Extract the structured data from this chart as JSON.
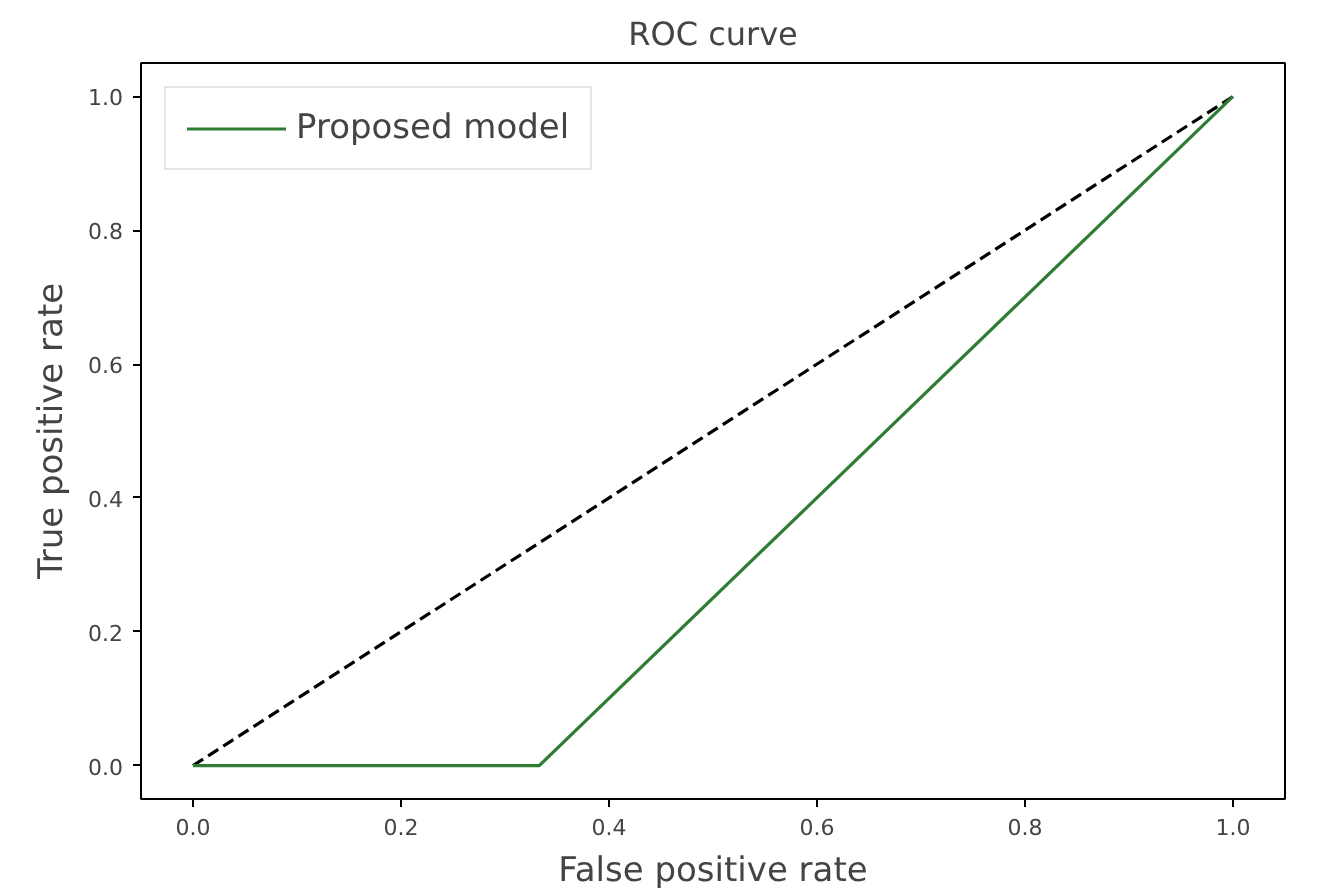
{
  "chart_data": {
    "type": "line",
    "title": "ROC curve",
    "xlabel": "False positive rate",
    "ylabel": "True positive rate",
    "xlim": [
      -0.05,
      1.05
    ],
    "ylim": [
      -0.05,
      1.05
    ],
    "xticks": [
      {
        "value": 0,
        "label": "0.0"
      },
      {
        "value": 0.2,
        "label": "0.2"
      },
      {
        "value": 0.4,
        "label": "0.4"
      },
      {
        "value": 0.6,
        "label": "0.6"
      },
      {
        "value": 0.8,
        "label": "0.8"
      },
      {
        "value": 1,
        "label": "1.0"
      }
    ],
    "yticks": [
      {
        "value": 0,
        "label": "0.0"
      },
      {
        "value": 0.2,
        "label": "0.2"
      },
      {
        "value": 0.4,
        "label": "0.4"
      },
      {
        "value": 0.6,
        "label": "0.6"
      },
      {
        "value": 0.8,
        "label": "0.8"
      },
      {
        "value": 1,
        "label": "1.0"
      }
    ],
    "grid": false,
    "legend": "top left",
    "series": [
      {
        "color": "#000000",
        "line_style": "dashed",
        "x": [
          0,
          1
        ],
        "values": [
          0,
          1
        ]
      },
      {
        "name": "Proposed model",
        "color": "#2e7d32",
        "line_style": "solid",
        "x": [
          0,
          0.333,
          1
        ],
        "values": [
          0,
          0,
          1
        ]
      }
    ]
  }
}
